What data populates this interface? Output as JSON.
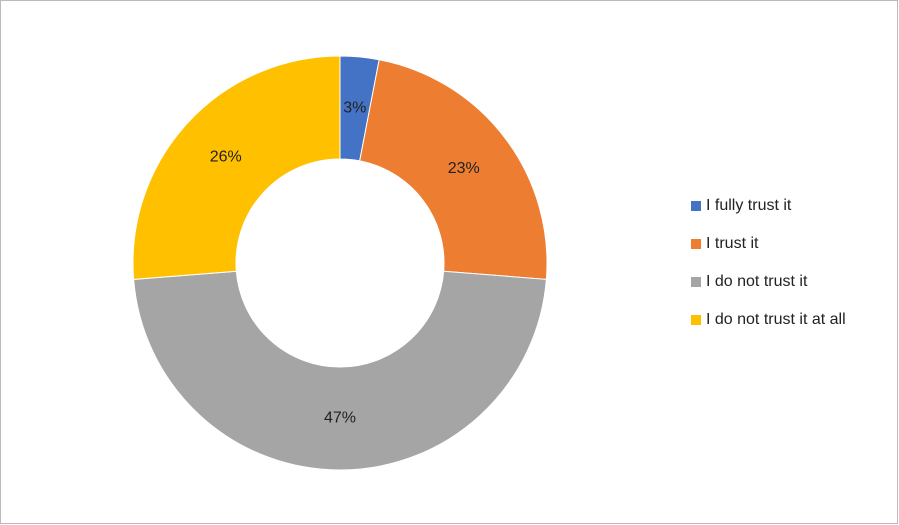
{
  "chart_data": {
    "type": "donut",
    "categories": [
      "I fully trust it",
      "I trust it",
      "I do not trust it",
      "I do not trust it at all"
    ],
    "values": [
      3,
      23,
      47,
      26
    ],
    "value_labels": [
      "3%",
      "23%",
      "47%",
      "26%"
    ],
    "colors": [
      "#4472c4",
      "#ed7d31",
      "#a5a5a5",
      "#ffc000"
    ],
    "legend": "right"
  }
}
